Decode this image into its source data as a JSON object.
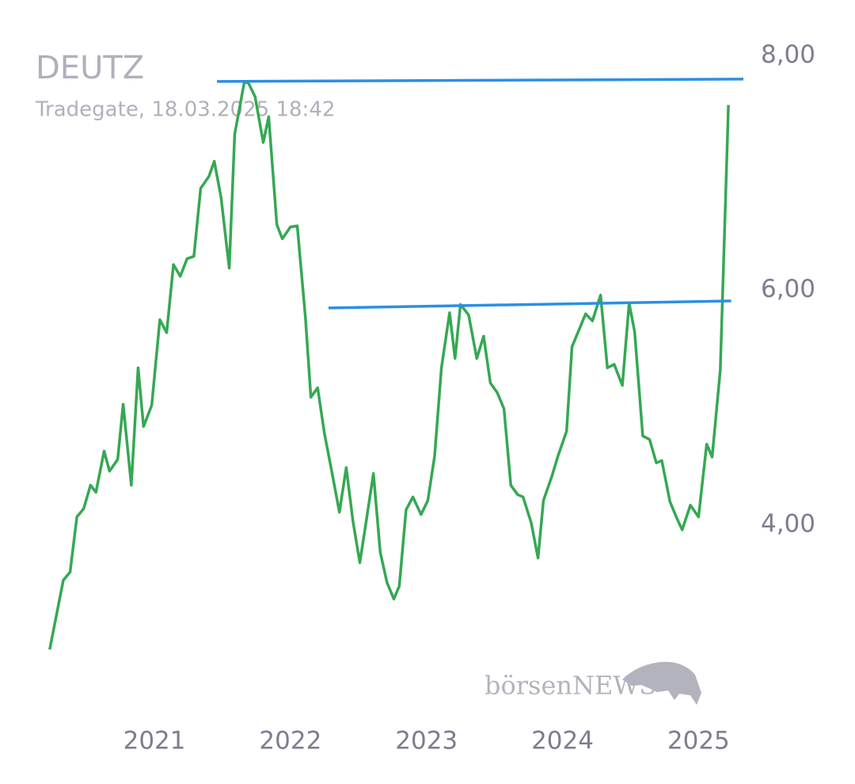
{
  "chart_data": {
    "type": "line",
    "title": "DEUTZ",
    "subtitle": "Tradegate, 18.03.2025 18:42",
    "watermark": "börsenNEWS",
    "xlim": [
      2020,
      2025.5
    ],
    "xticks": [
      2021,
      2022,
      2023,
      2024,
      2025
    ],
    "ylim": [
      2.5,
      8.4
    ],
    "yticks": [
      {
        "value": 4,
        "label": "4,00"
      },
      {
        "value": 6,
        "label": "6,00"
      },
      {
        "value": 8,
        "label": "8,00"
      }
    ],
    "grid": false,
    "series": [
      {
        "color": "#35a853",
        "x": [
          2020.23,
          2020.33,
          2020.38,
          2020.43,
          2020.48,
          2020.53,
          2020.57,
          2020.63,
          2020.67,
          2020.73,
          2020.77,
          2020.83,
          2020.88,
          2020.92,
          2020.98,
          2021.04,
          2021.09,
          2021.14,
          2021.19,
          2021.24,
          2021.29,
          2021.34,
          2021.4,
          2021.44,
          2021.49,
          2021.55,
          2021.59,
          2021.66,
          2021.69,
          2021.74,
          2021.8,
          2021.84,
          2021.9,
          2021.94,
          2022.0,
          2022.05,
          2022.11,
          2022.15,
          2022.2,
          2022.25,
          2022.3,
          2022.36,
          2022.41,
          2022.46,
          2022.51,
          2022.55,
          2022.61,
          2022.66,
          2022.71,
          2022.76,
          2022.8,
          2022.85,
          2022.9,
          2022.96,
          2023.01,
          2023.06,
          2023.11,
          2023.17,
          2023.21,
          2023.25,
          2023.31,
          2023.37,
          2023.42,
          2023.47,
          2023.52,
          2023.57,
          2023.62,
          2023.67,
          2023.71,
          2023.77,
          2023.82,
          2023.86,
          2023.92,
          2023.97,
          2024.03,
          2024.07,
          2024.12,
          2024.17,
          2024.22,
          2024.28,
          2024.33,
          2024.38,
          2024.44,
          2024.49,
          2024.53,
          2024.59,
          2024.64,
          2024.69,
          2024.73,
          2024.79,
          2024.84,
          2024.88,
          2024.94,
          2025.0,
          2025.06,
          2025.1,
          2025.16,
          2025.22
        ],
        "values": [
          2.94,
          3.53,
          3.6,
          4.07,
          4.14,
          4.34,
          4.28,
          4.63,
          4.46,
          4.56,
          5.03,
          4.34,
          5.34,
          4.84,
          5.02,
          5.75,
          5.64,
          6.22,
          6.12,
          6.27,
          6.29,
          6.87,
          6.97,
          7.1,
          6.79,
          6.19,
          7.33,
          7.77,
          7.77,
          7.65,
          7.26,
          7.48,
          6.56,
          6.44,
          6.54,
          6.55,
          5.77,
          5.09,
          5.17,
          4.78,
          4.48,
          4.11,
          4.49,
          4.03,
          3.68,
          3.98,
          4.44,
          3.77,
          3.51,
          3.37,
          3.48,
          4.13,
          4.24,
          4.09,
          4.21,
          4.59,
          5.34,
          5.81,
          5.42,
          5.88,
          5.79,
          5.42,
          5.61,
          5.21,
          5.13,
          4.99,
          4.34,
          4.26,
          4.24,
          4.02,
          3.72,
          4.21,
          4.41,
          4.6,
          4.8,
          5.52,
          5.66,
          5.8,
          5.74,
          5.96,
          5.34,
          5.37,
          5.19,
          5.89,
          5.65,
          4.76,
          4.73,
          4.53,
          4.55,
          4.2,
          4.06,
          3.96,
          4.17,
          4.07,
          4.69,
          4.58,
          5.32,
          7.58
        ]
      },
      {
        "color": "#2b8fe3",
        "x": [
          2021.46,
          2025.33
        ],
        "values": [
          7.78,
          7.8
        ]
      },
      {
        "color": "#2b8fe3",
        "x": [
          2022.28,
          2025.24
        ],
        "values": [
          5.85,
          5.91
        ]
      }
    ]
  }
}
